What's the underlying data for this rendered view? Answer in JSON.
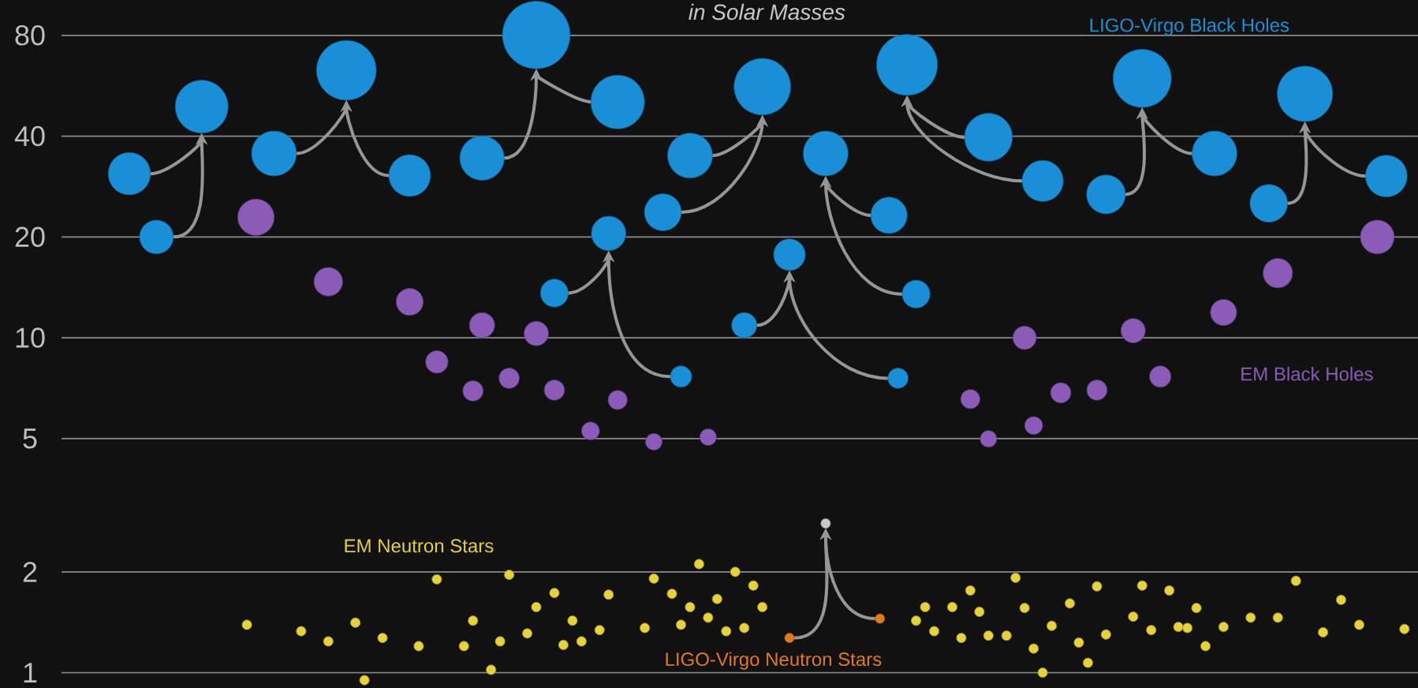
{
  "chart_data": {
    "type": "bubble",
    "title": "in Solar Masses",
    "log": "y",
    "grid": "y",
    "tick_labels": "y",
    "marker": "circle",
    "ylim": [
      0.9,
      102
    ],
    "yticks": [
      1,
      2,
      5,
      10,
      20,
      40,
      80
    ],
    "categories": [
      null,
      null,
      null,
      null,
      null,
      null,
      null,
      null,
      null,
      null,
      null,
      null,
      null,
      null,
      null,
      null,
      null,
      null,
      null,
      null,
      null,
      null,
      null,
      null,
      null,
      null,
      null,
      null,
      null,
      null,
      null,
      null,
      null,
      null,
      null,
      null,
      null,
      null,
      null,
      null,
      null,
      null,
      null,
      null,
      null,
      null,
      null,
      null,
      null,
      null,
      null,
      null,
      null,
      null,
      null,
      null,
      null,
      null,
      null,
      null,
      null,
      null,
      null,
      null,
      null,
      null,
      null,
      null,
      null,
      null,
      null,
      null,
      null,
      null,
      null,
      null,
      null,
      null,
      null,
      null,
      null,
      null,
      null,
      null,
      null,
      null,
      null,
      null,
      null,
      null,
      null,
      null,
      null,
      null,
      null,
      null,
      null,
      null,
      null,
      null,
      null,
      null,
      null,
      null,
      null,
      null,
      null,
      null,
      null,
      null,
      null,
      null,
      null,
      null,
      null,
      null,
      null,
      null,
      null,
      null,
      null,
      null,
      null,
      null,
      null,
      null,
      null,
      null,
      null,
      null,
      null,
      null,
      null,
      null,
      null,
      null,
      null,
      null,
      null,
      null,
      null,
      null,
      null,
      null,
      null,
      null,
      null,
      null,
      null,
      null
    ],
    "series": [
      {
        "name": "LIGO-Virgo Black Holes",
        "color": "#1a8fd6",
        "values": [
          null,
          null,
          null,
          null,
          null,
          null,
          null,
          30.9,
          null,
          null,
          20.0,
          null,
          null,
          null,
          null,
          49,
          null,
          null,
          null,
          null,
          null,
          null,
          null,
          35.5,
          null,
          null,
          null,
          null,
          null,
          null,
          null,
          62.9,
          null,
          null,
          null,
          null,
          null,
          null,
          30.5,
          null,
          null,
          null,
          null,
          null,
          null,
          null,
          34.4,
          null,
          null,
          null,
          null,
          null,
          80.2,
          null,
          13.6,
          null,
          null,
          null,
          null,
          null,
          20.5,
          50.6,
          null,
          null,
          null,
          null,
          23.7,
          null,
          7.66,
          35,
          null,
          null,
          null,
          null,
          null,
          10.9,
          null,
          56.2,
          null,
          null,
          17.7,
          null,
          null,
          null,
          35.5,
          null,
          null,
          null,
          null,
          null,
          null,
          23.2,
          7.57,
          65.3,
          13.5,
          null,
          null,
          null,
          null,
          null,
          null,
          null,
          39.7,
          null,
          null,
          null,
          null,
          null,
          29.4,
          null,
          null,
          null,
          null,
          null,
          null,
          26.8,
          null,
          null,
          null,
          59.5,
          null,
          null,
          null,
          null,
          null,
          null,
          null,
          35.5,
          null,
          null,
          null,
          null,
          null,
          25.2,
          null,
          null,
          null,
          53.5,
          null,
          null,
          null,
          null,
          null,
          null,
          null,
          null,
          30.4,
          null,
          null,
          null
        ],
        "sizes": [
          null,
          null,
          null,
          null,
          null,
          null,
          null,
          0.39,
          null,
          null,
          0.25,
          null,
          null,
          null,
          null,
          0.61,
          null,
          null,
          null,
          null,
          null,
          null,
          null,
          0.44,
          null,
          null,
          null,
          null,
          null,
          null,
          null,
          0.78,
          null,
          null,
          null,
          null,
          null,
          null,
          0.38,
          null,
          null,
          null,
          null,
          null,
          null,
          null,
          0.43,
          null,
          null,
          null,
          null,
          null,
          1,
          null,
          0.17,
          null,
          null,
          null,
          null,
          null,
          0.26,
          0.63,
          null,
          null,
          null,
          null,
          0.3,
          null,
          0.1,
          0.44,
          null,
          null,
          null,
          null,
          null,
          0.14,
          null,
          0.7,
          null,
          null,
          0.22,
          null,
          null,
          null,
          0.44,
          null,
          null,
          null,
          null,
          null,
          null,
          0.29,
          0.09,
          0.81,
          0.17,
          null,
          null,
          null,
          null,
          null,
          null,
          null,
          0.5,
          null,
          null,
          null,
          null,
          null,
          0.37,
          null,
          null,
          null,
          null,
          null,
          null,
          0.33,
          null,
          null,
          null,
          0.74,
          null,
          null,
          null,
          null,
          null,
          null,
          null,
          0.44,
          null,
          null,
          null,
          null,
          null,
          0.31,
          null,
          null,
          null,
          0.67,
          null,
          null,
          null,
          null,
          null,
          null,
          null,
          null,
          0.38,
          null,
          null,
          null
        ]
      },
      {
        "name": "EM Black Holes",
        "color": "#8a5cb8",
        "values": [
          null,
          null,
          null,
          null,
          null,
          null,
          null,
          null,
          null,
          null,
          null,
          null,
          null,
          null,
          null,
          null,
          null,
          null,
          null,
          null,
          null,
          22.9,
          null,
          null,
          null,
          null,
          null,
          null,
          null,
          14.7,
          null,
          null,
          null,
          null,
          null,
          null,
          null,
          null,
          12.8,
          null,
          null,
          8.47,
          null,
          null,
          null,
          6.94,
          10.9,
          null,
          null,
          7.57,
          null,
          null,
          10.3,
          null,
          6.98,
          null,
          null,
          null,
          5.27,
          null,
          null,
          6.52,
          null,
          null,
          null,
          4.89,
          null,
          null,
          null,
          null,
          null,
          5.05,
          null,
          null,
          null,
          null,
          null,
          null,
          null,
          null,
          null,
          null,
          null,
          null,
          null,
          null,
          null,
          null,
          null,
          null,
          null,
          null,
          null,
          null,
          null,
          null,
          null,
          null,
          null,
          null,
          6.56,
          null,
          4.99,
          null,
          null,
          null,
          10.0,
          5.47,
          null,
          null,
          6.85,
          null,
          null,
          null,
          6.98,
          null,
          null,
          null,
          10.5,
          null,
          null,
          7.66,
          null,
          null,
          null,
          null,
          null,
          null,
          11.9,
          null,
          null,
          null,
          null,
          null,
          15.6,
          null,
          null,
          null,
          null,
          null,
          null,
          null,
          null,
          null,
          null,
          20.0,
          null,
          null,
          null,
          null
        ],
        "sizes": [
          null,
          null,
          null,
          null,
          null,
          null,
          null,
          null,
          null,
          null,
          null,
          null,
          null,
          null,
          null,
          null,
          null,
          null,
          null,
          null,
          null,
          0.29,
          null,
          null,
          null,
          null,
          null,
          null,
          null,
          0.18,
          null,
          null,
          null,
          null,
          null,
          null,
          null,
          null,
          0.16,
          null,
          null,
          0.11,
          null,
          null,
          null,
          0.09,
          0.14,
          null,
          null,
          0.09,
          null,
          null,
          0.13,
          null,
          0.09,
          null,
          null,
          null,
          0.07,
          null,
          null,
          0.08,
          null,
          null,
          null,
          0.06,
          null,
          null,
          null,
          null,
          null,
          0.06,
          null,
          null,
          null,
          null,
          null,
          null,
          null,
          null,
          null,
          null,
          null,
          null,
          null,
          null,
          null,
          null,
          null,
          null,
          null,
          null,
          null,
          null,
          null,
          null,
          null,
          null,
          null,
          null,
          0.08,
          null,
          0.06,
          null,
          null,
          null,
          0.12,
          0.07,
          null,
          null,
          0.09,
          null,
          null,
          null,
          0.09,
          null,
          null,
          null,
          0.13,
          null,
          null,
          0.1,
          null,
          null,
          null,
          null,
          null,
          null,
          0.15,
          null,
          null,
          null,
          null,
          null,
          0.19,
          null,
          null,
          null,
          null,
          null,
          null,
          null,
          null,
          null,
          null,
          0.25,
          null,
          null,
          null,
          null
        ]
      },
      {
        "name": "EM Neutron Stars",
        "type": "scatter",
        "color": "#e6d23c",
        "values": [
          null,
          null,
          null,
          null,
          null,
          null,
          null,
          null,
          null,
          null,
          null,
          null,
          null,
          null,
          null,
          null,
          null,
          null,
          null,
          null,
          1.39,
          null,
          null,
          null,
          null,
          null,
          1.33,
          null,
          null,
          1.24,
          null,
          null,
          1.41,
          0.95,
          null,
          1.27,
          null,
          null,
          null,
          1.2,
          null,
          1.9,
          null,
          null,
          1.2,
          1.43,
          null,
          1.02,
          1.24,
          1.96,
          null,
          1.31,
          1.57,
          null,
          1.73,
          1.21,
          1.43,
          1.24,
          null,
          1.34,
          1.71,
          null,
          null,
          null,
          1.36,
          1.91,
          null,
          1.72,
          1.39,
          1.57,
          2.11,
          1.46,
          1.66,
          1.33,
          2.0,
          1.36,
          1.82,
          1.57,
          null,
          null,
          null,
          null,
          null,
          null,
          null,
          null,
          null,
          null,
          null,
          null,
          null,
          null,
          null,
          null,
          1.43,
          1.57,
          1.33,
          null,
          1.57,
          1.27,
          1.76,
          1.52,
          1.29,
          null,
          1.29,
          1.92,
          1.56,
          1.18,
          1.0,
          1.38,
          null,
          1.61,
          1.23,
          1.07,
          1.81,
          1.3,
          null,
          null,
          1.47,
          1.82,
          1.34,
          null,
          1.76,
          1.37,
          1.36,
          1.56,
          1.2,
          null,
          1.37,
          null,
          null,
          1.46,
          null,
          null,
          1.46,
          null,
          1.88,
          null,
          null,
          1.32,
          null,
          1.65,
          null,
          1.39,
          null,
          null,
          null,
          null,
          1.35,
          null
        ]
      },
      {
        "name": "LIGO-Virgo Neutron Stars",
        "type": "scatter",
        "color": "#e07a1e",
        "values": [
          null,
          null,
          null,
          null,
          null,
          null,
          null,
          null,
          null,
          null,
          null,
          null,
          null,
          null,
          null,
          null,
          null,
          null,
          null,
          null,
          null,
          null,
          null,
          null,
          null,
          null,
          null,
          null,
          null,
          null,
          null,
          null,
          null,
          null,
          null,
          null,
          null,
          null,
          null,
          null,
          null,
          null,
          null,
          null,
          null,
          null,
          null,
          null,
          null,
          null,
          null,
          null,
          null,
          null,
          null,
          null,
          null,
          null,
          null,
          null,
          null,
          null,
          null,
          null,
          null,
          null,
          null,
          null,
          null,
          null,
          null,
          null,
          null,
          null,
          null,
          null,
          null,
          null,
          null,
          null,
          1.27,
          null,
          null,
          null,
          null,
          null,
          null,
          null,
          null,
          null,
          1.45,
          null,
          null,
          null,
          null,
          null,
          null,
          null,
          null,
          null,
          null,
          null,
          null,
          null,
          null,
          null,
          null,
          null,
          null,
          null,
          null,
          null,
          null,
          null,
          null,
          null,
          null,
          null,
          null,
          null,
          null,
          null,
          null,
          null,
          null,
          null,
          null,
          null,
          null,
          null,
          null,
          null,
          null,
          null,
          null,
          null,
          null,
          null,
          null,
          null,
          null,
          null,
          null,
          null,
          null,
          null,
          null,
          null,
          null,
          null
        ]
      },
      {
        "type": "scatter",
        "color": "#c8c8c8",
        "values": [
          null,
          null,
          null,
          null,
          null,
          null,
          null,
          null,
          null,
          null,
          null,
          null,
          null,
          null,
          null,
          null,
          null,
          null,
          null,
          null,
          null,
          null,
          null,
          null,
          null,
          null,
          null,
          null,
          null,
          null,
          null,
          null,
          null,
          null,
          null,
          null,
          null,
          null,
          null,
          null,
          null,
          null,
          null,
          null,
          null,
          null,
          null,
          null,
          null,
          null,
          null,
          null,
          null,
          null,
          null,
          null,
          null,
          null,
          null,
          null,
          null,
          null,
          null,
          null,
          null,
          null,
          null,
          null,
          null,
          null,
          null,
          null,
          null,
          null,
          null,
          null,
          null,
          null,
          null,
          null,
          null,
          null,
          null,
          null,
          2.79,
          null,
          null,
          null,
          null,
          null,
          null,
          null,
          null,
          null,
          null,
          null,
          null,
          null,
          null,
          null,
          null,
          null,
          null,
          null,
          null,
          null,
          null,
          null,
          null,
          null,
          null,
          null,
          null,
          null,
          null,
          null,
          null,
          null,
          null,
          null,
          null,
          null,
          null,
          null,
          null,
          null,
          null,
          null,
          null,
          null,
          null,
          null,
          null,
          null,
          null,
          null,
          null,
          null,
          null,
          null,
          null,
          null,
          null,
          null,
          null,
          null,
          null,
          null,
          null,
          null
        ]
      }
    ]
  }
}
